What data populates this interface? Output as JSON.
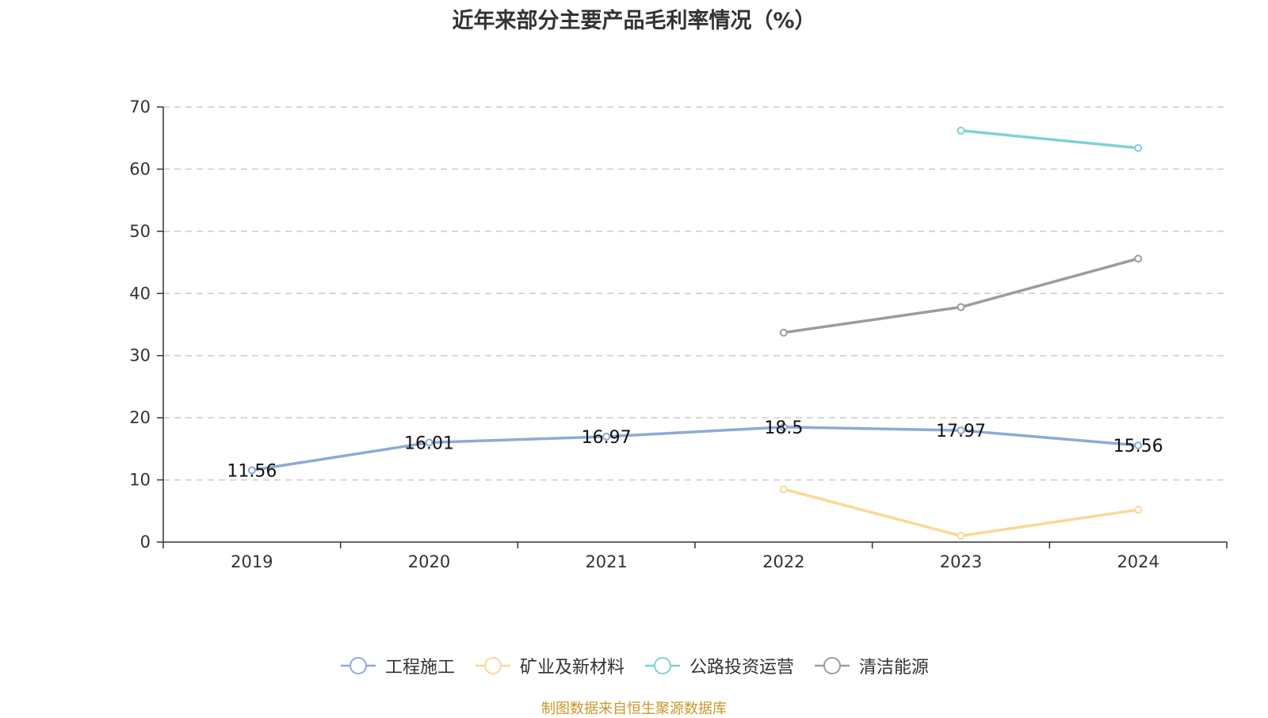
{
  "source_text": "制图数据来自恒生聚源数据库",
  "chart_data": {
    "type": "line",
    "title": "近年来部分主要产品毛利率情况（%）",
    "xlabel": "",
    "ylabel": "",
    "categories": [
      "2019",
      "2020",
      "2021",
      "2022",
      "2023",
      "2024"
    ],
    "ylim": [
      0,
      70
    ],
    "yticks": [
      0,
      10,
      20,
      30,
      40,
      50,
      60,
      70
    ],
    "grid": true,
    "legend": "bottom",
    "series": [
      {
        "name": "工程施工",
        "color": "#8eaad6",
        "show_labels": true,
        "values": [
          11.56,
          16.01,
          16.97,
          18.5,
          17.97,
          15.56
        ]
      },
      {
        "name": "矿业及新材料",
        "color": "#fcd795",
        "show_labels": false,
        "values": [
          null,
          null,
          null,
          8.5,
          1.0,
          5.2
        ]
      },
      {
        "name": "公路投资运营",
        "color": "#7fd1d3",
        "show_labels": false,
        "values": [
          null,
          null,
          null,
          null,
          66.2,
          63.4
        ]
      },
      {
        "name": "清洁能源",
        "color": "#9c9c9c",
        "show_labels": false,
        "values": [
          null,
          null,
          null,
          33.7,
          37.8,
          45.6
        ]
      }
    ]
  }
}
